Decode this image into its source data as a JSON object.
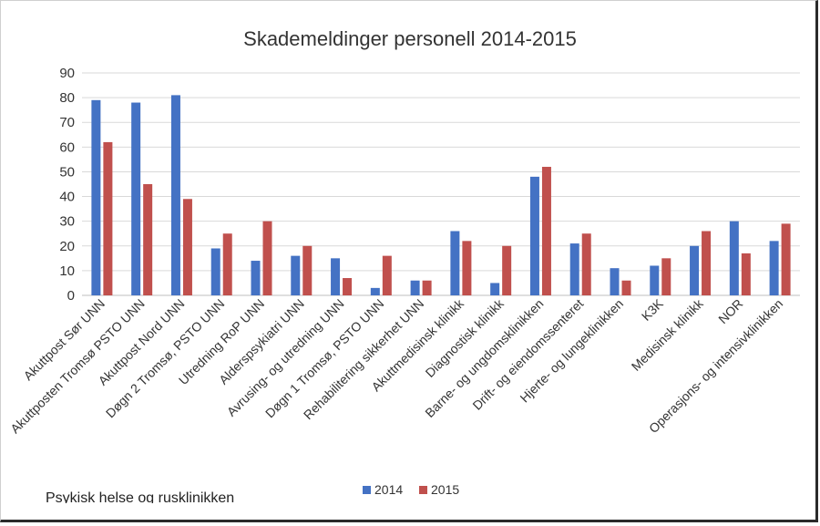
{
  "chart_data": {
    "type": "bar",
    "title": "Skademeldinger personell 2014-2015",
    "xlabel": "",
    "ylabel": "",
    "ylim": [
      0,
      90
    ],
    "yticks": [
      0,
      10,
      20,
      30,
      40,
      50,
      60,
      70,
      80,
      90
    ],
    "grid": true,
    "legend_position": "bottom",
    "categories": [
      "Akuttpost Sør UNN",
      "Akuttposten Tromsø PSTO UNN",
      "Akuttpost Nord UNN",
      "Døgn 2 Tromsø, PSTO UNN",
      "Utredning RoP UNN",
      "Alderspsykiatri UNN",
      "Avrusing- og utredning UNN",
      "Døgn 1 Tromsø, PSTO UNN",
      "Rehabilitering sikkerhet UNN",
      "Akuttmedisinsk klinikk",
      "Diagnostisk klinikk",
      "Barne- og ungdomsklinikken",
      "Drift- og eiendomssenteret",
      "Hjerte- og lungeklinikken",
      "K3K",
      "Medisinsk klinikk",
      "NOR",
      "Operasjons- og intensivklinikken"
    ],
    "series": [
      {
        "name": "2014",
        "color": "#4472C4",
        "values": [
          79,
          78,
          81,
          19,
          14,
          16,
          15,
          3,
          6,
          26,
          5,
          48,
          21,
          11,
          12,
          20,
          30,
          22
        ]
      },
      {
        "name": "2015",
        "color": "#C0504D",
        "values": [
          62,
          45,
          39,
          25,
          30,
          20,
          7,
          16,
          6,
          22,
          20,
          52,
          25,
          6,
          15,
          26,
          17,
          29
        ]
      }
    ]
  },
  "footnote": "Psykisk helse og rusklinikken"
}
